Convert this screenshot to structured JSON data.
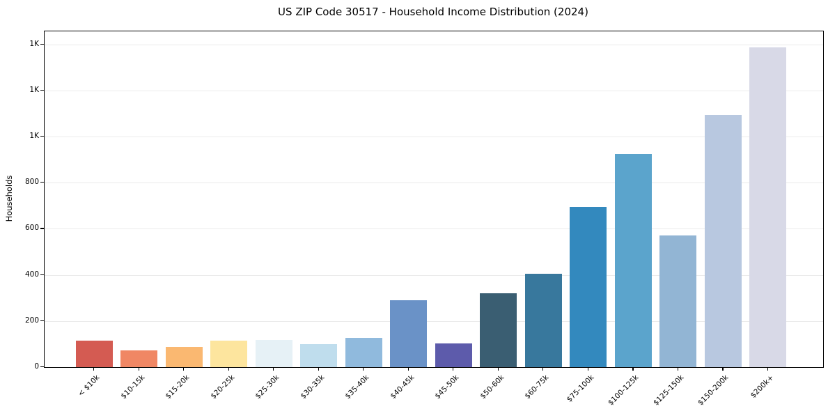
{
  "chart_data": {
    "type": "bar",
    "title": "US ZIP Code 30517 - Household Income Distribution (2024)",
    "xlabel": "",
    "ylabel": "Households",
    "categories": [
      "< $10k",
      "$10-15k",
      "$15-20k",
      "$20-25k",
      "$25-30k",
      "$30-35k",
      "$35-40k",
      "$40-45k",
      "$45-50k",
      "$50-60k",
      "$60-75k",
      "$75-100k",
      "$100-125k",
      "$125-150k",
      "$150-200k",
      "$200k+"
    ],
    "values": [
      116,
      74,
      89,
      116,
      119,
      101,
      127,
      291,
      104,
      321,
      404,
      694,
      924,
      570,
      1093,
      1387
    ],
    "bar_colors": [
      "#d45b52",
      "#f08764",
      "#fab871",
      "#fde59e",
      "#e6f1f6",
      "#bfdded",
      "#90badd",
      "#6a92c7",
      "#5d5bab",
      "#3a5e72",
      "#38789d",
      "#3389be",
      "#5ba4cc",
      "#92b5d4",
      "#b8c8e0",
      "#d8d9e7"
    ],
    "ylim": [
      0,
      1456
    ],
    "yticks": {
      "values": [
        0,
        200,
        400,
        600,
        800,
        1000,
        1200,
        1400
      ],
      "labels": [
        "0",
        "200",
        "400",
        "600",
        "800",
        "1K",
        "1K",
        "1K"
      ]
    },
    "grid": "horizontal",
    "legend": "none",
    "grid_color": "#ebebeb",
    "spine_color": "#000000",
    "background_color": "#ffffff"
  }
}
